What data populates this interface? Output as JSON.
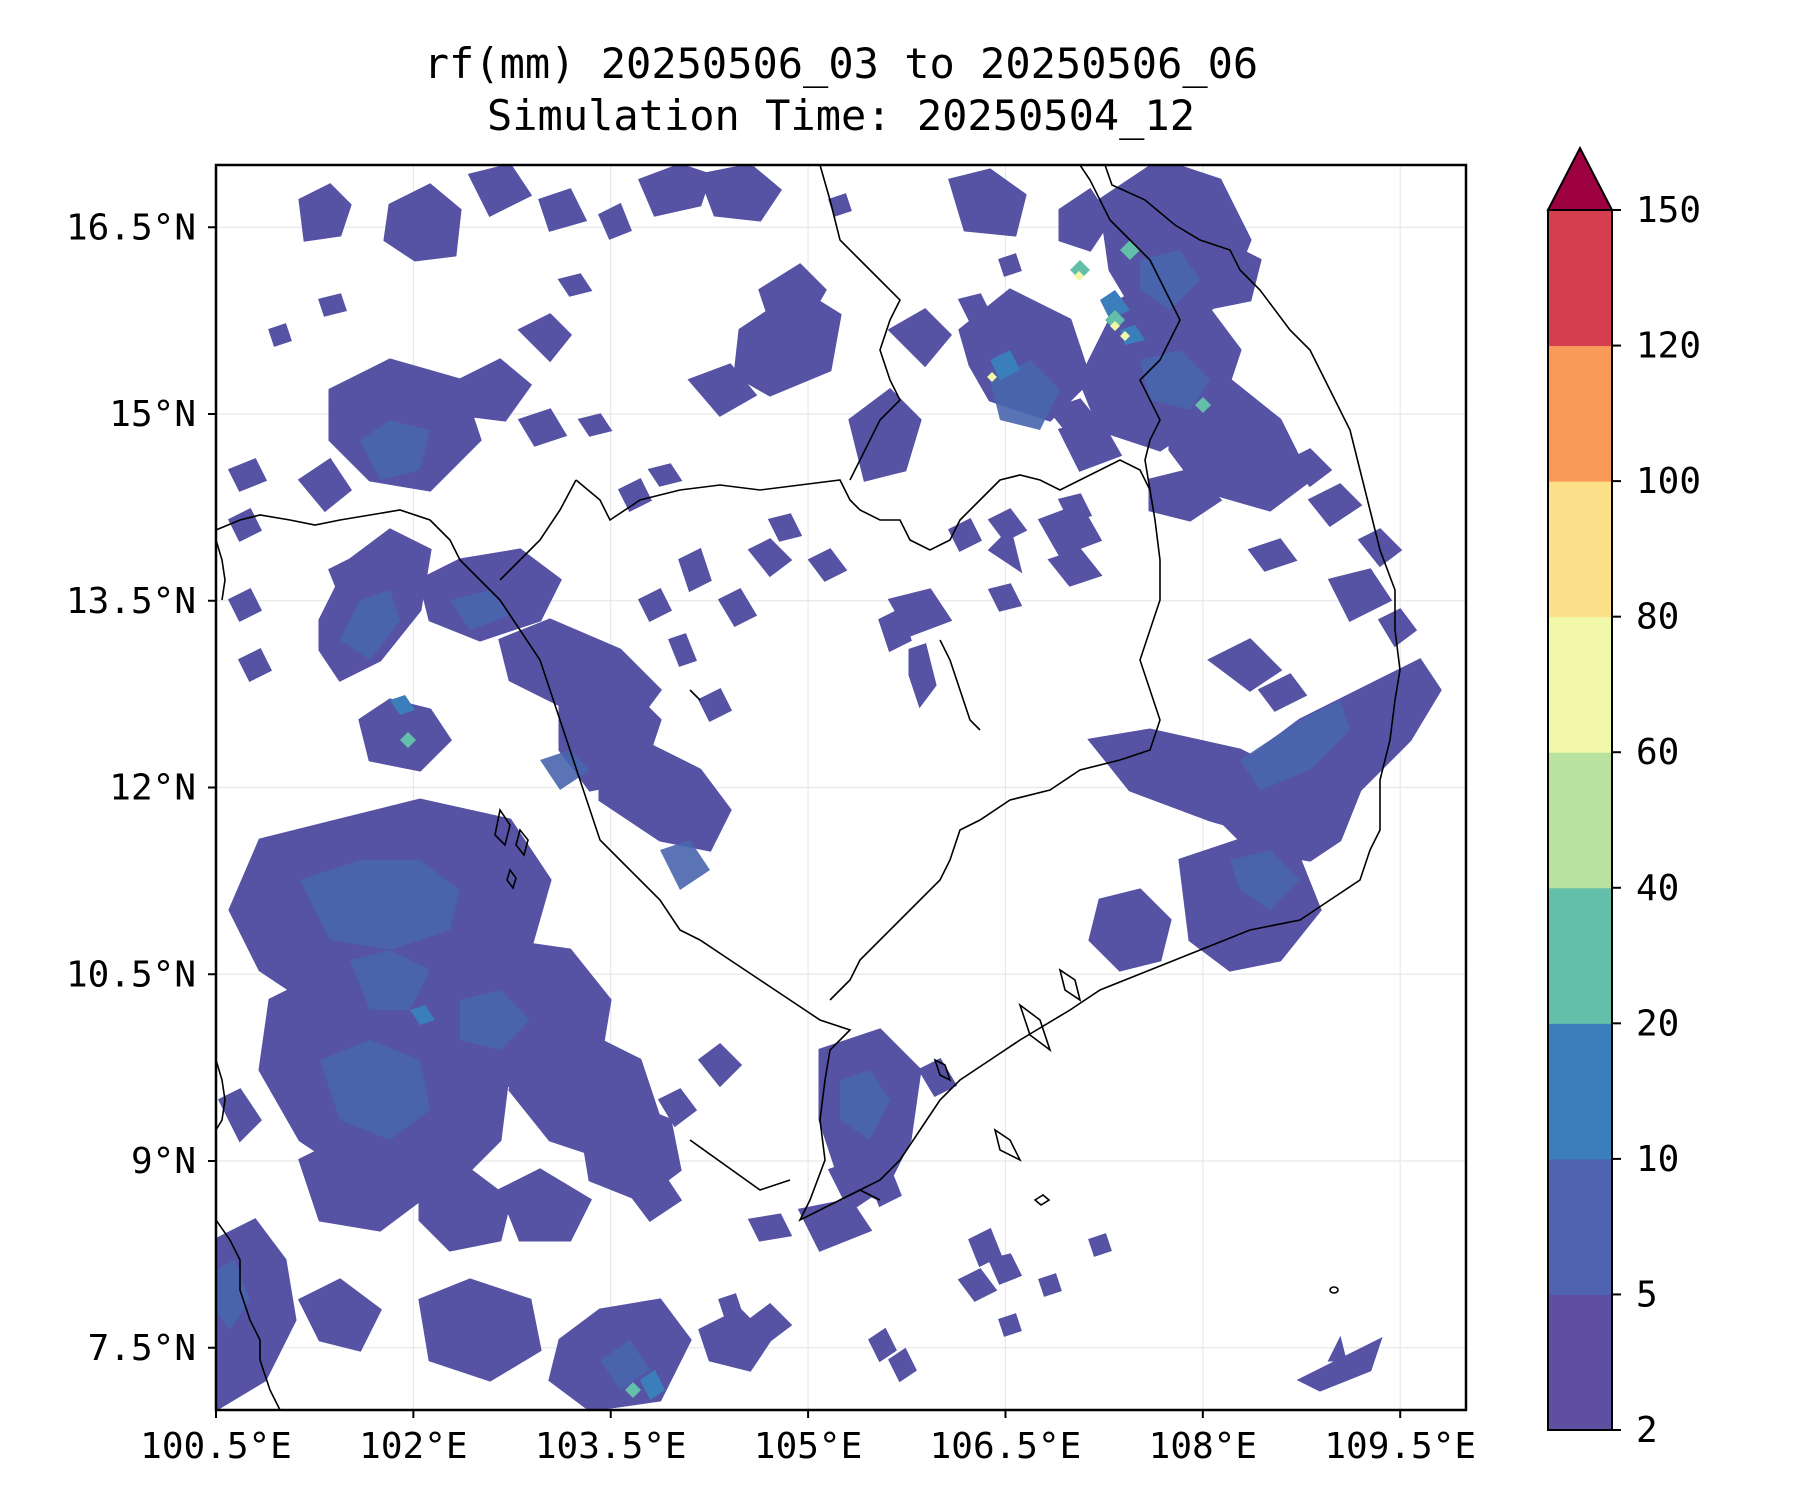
{
  "title": {
    "line1": "rf(mm) 20250506_03 to 20250506_06",
    "line2": "Simulation Time: 20250504_12"
  },
  "map": {
    "lon_range": [
      100.5,
      110.0
    ],
    "lat_range": [
      7.0,
      17.0
    ],
    "grid": true,
    "x_ticks": [
      {
        "value": 100.5,
        "label": "100.5°E"
      },
      {
        "value": 102.0,
        "label": "102°E"
      },
      {
        "value": 103.5,
        "label": "103.5°E"
      },
      {
        "value": 105.0,
        "label": "105°E"
      },
      {
        "value": 106.5,
        "label": "106.5°E"
      },
      {
        "value": 108.0,
        "label": "108°E"
      },
      {
        "value": 109.5,
        "label": "109.5°E"
      }
    ],
    "y_ticks": [
      {
        "value": 16.5,
        "label": "16.5°N"
      },
      {
        "value": 15.0,
        "label": "15°N"
      },
      {
        "value": 13.5,
        "label": "13.5°N"
      },
      {
        "value": 12.0,
        "label": "12°N"
      },
      {
        "value": 10.5,
        "label": "10.5°N"
      },
      {
        "value": 9.0,
        "label": "9°N"
      },
      {
        "value": 7.5,
        "label": "7.5°N"
      }
    ]
  },
  "colorbar": {
    "levels": [
      {
        "label": "2",
        "color": "#5e4fa2"
      },
      {
        "label": "5",
        "color": "#4f63b0"
      },
      {
        "label": "10",
        "color": "#3a7fbb"
      },
      {
        "label": "20",
        "color": "#63bfa9"
      },
      {
        "label": "40",
        "color": "#b9e1a0"
      },
      {
        "label": "60",
        "color": "#f2f8aa"
      },
      {
        "label": "80",
        "color": "#fde08a"
      },
      {
        "label": "100",
        "color": "#fa9a58"
      },
      {
        "label": "120",
        "color": "#d53e4f"
      },
      {
        "label": "150",
        "color": "#9e0142"
      }
    ],
    "extend": "max"
  }
}
